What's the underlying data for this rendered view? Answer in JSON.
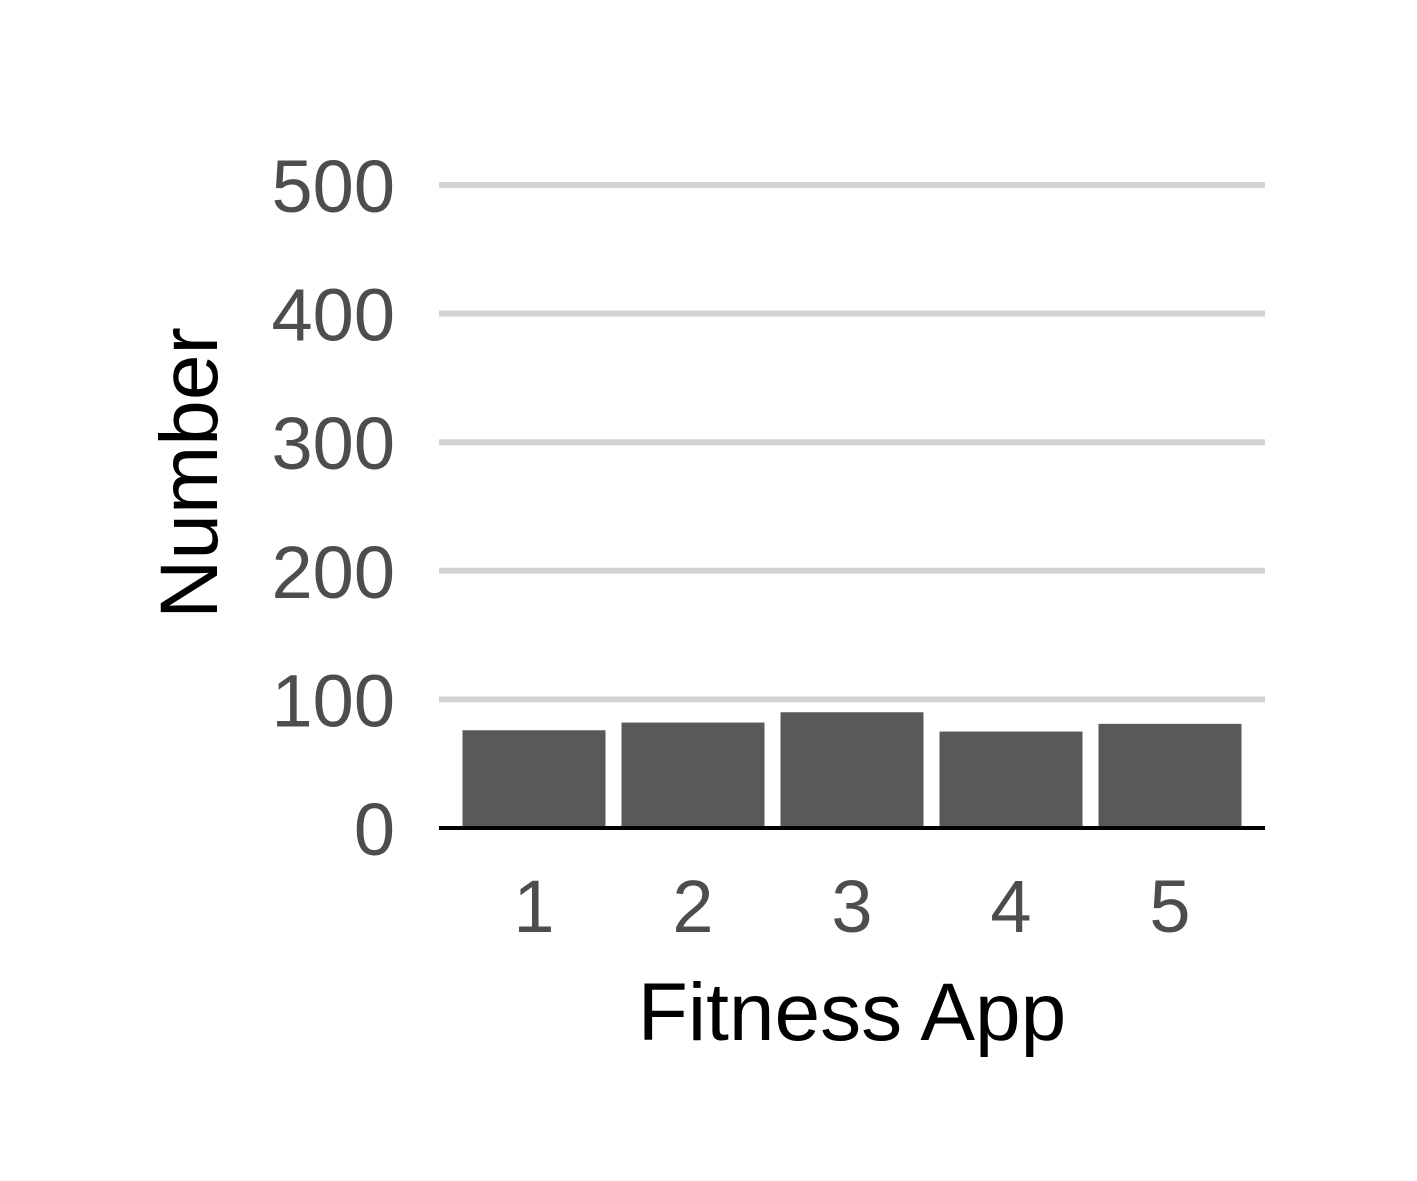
{
  "chart_data": {
    "type": "bar",
    "categories": [
      "1",
      "2",
      "3",
      "4",
      "5"
    ],
    "values": [
      76,
      82,
      90,
      75,
      81
    ],
    "xlabel": "Fitness App",
    "ylabel": "Number",
    "ylim": [
      0,
      500
    ],
    "yticks": [
      0,
      100,
      200,
      300,
      400,
      500
    ],
    "grid": true,
    "legend": "none",
    "colors": {
      "bar": "#595959",
      "grid": "#d3d3d3",
      "axis": "#000000",
      "tick_text": "#4d4d4d"
    }
  }
}
